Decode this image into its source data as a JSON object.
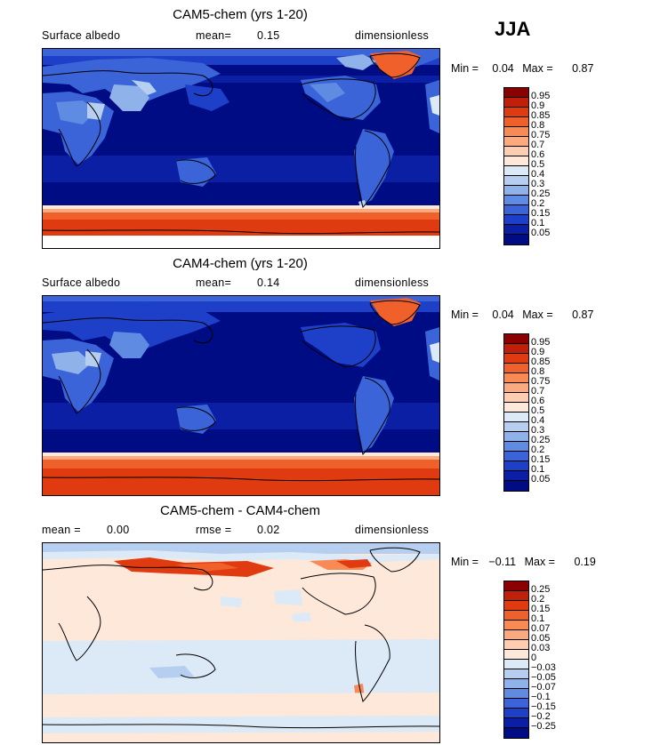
{
  "season": "JJA",
  "panels": [
    {
      "title": "CAM5-chem (yrs 1-20)",
      "left_label": "Surface albedo",
      "mid_label": "mean=",
      "mid_value": "0.15",
      "right_label": "dimensionless",
      "min_label": "Min =",
      "min_value": "0.04",
      "max_label": "Max =",
      "max_value": "0.87",
      "levels": [
        "0.95",
        "0.9",
        "0.85",
        "0.8",
        "0.75",
        "0.7",
        "0.6",
        "0.5",
        "0.4",
        "0.3",
        "0.25",
        "0.2",
        "0.15",
        "0.1",
        "0.05"
      ],
      "colors": [
        "#8b0000",
        "#c0200a",
        "#e03a10",
        "#f0602a",
        "#f88a55",
        "#fbaa80",
        "#fccdb0",
        "#fde8da",
        "#dce9f7",
        "#b6cff0",
        "#8fb2ea",
        "#5f8be2",
        "#3a64d8",
        "#1e3fc8",
        "#0b1fa5",
        "#000c84"
      ]
    },
    {
      "title": "CAM4-chem (yrs 1-20)",
      "left_label": "Surface albedo",
      "mid_label": "mean=",
      "mid_value": "0.14",
      "right_label": "dimensionless",
      "min_label": "Min =",
      "min_value": "0.04",
      "max_label": "Max =",
      "max_value": "0.87",
      "levels": [
        "0.95",
        "0.9",
        "0.85",
        "0.8",
        "0.75",
        "0.7",
        "0.6",
        "0.5",
        "0.4",
        "0.3",
        "0.25",
        "0.2",
        "0.15",
        "0.1",
        "0.05"
      ],
      "colors": [
        "#8b0000",
        "#c0200a",
        "#e03a10",
        "#f0602a",
        "#f88a55",
        "#fbaa80",
        "#fccdb0",
        "#fde8da",
        "#dce9f7",
        "#b6cff0",
        "#8fb2ea",
        "#5f8be2",
        "#3a64d8",
        "#1e3fc8",
        "#0b1fa5",
        "#000c84"
      ]
    },
    {
      "title": "CAM5-chem - CAM4-chem",
      "left_label": "mean =",
      "left_value": "0.00",
      "mid_label": "rmse =",
      "mid_value": "0.02",
      "right_label": "dimensionless",
      "min_label": "Min =",
      "min_value": "−0.11",
      "max_label": "Max =",
      "max_value": "0.19",
      "levels": [
        "0.25",
        "0.2",
        "0.15",
        "0.1",
        "0.07",
        "0.05",
        "0.03",
        "0",
        "−0.03",
        "−0.05",
        "−0.07",
        "−0.1",
        "−0.15",
        "−0.2",
        "−0.25"
      ],
      "colors": [
        "#8b0000",
        "#c0200a",
        "#e03a10",
        "#f0602a",
        "#f88a55",
        "#fbaa80",
        "#fccdb0",
        "#fde8da",
        "#dce9f7",
        "#b6cff0",
        "#8fb2ea",
        "#5f8be2",
        "#3a64d8",
        "#1e3fc8",
        "#0b1fa5",
        "#000c84"
      ]
    }
  ],
  "chart_data": [
    {
      "type": "heatmap",
      "title": "CAM5-chem (yrs 1-20)",
      "variable": "Surface albedo",
      "units": "dimensionless",
      "mean": 0.15,
      "min": 0.04,
      "max": 0.87,
      "season": "JJA",
      "contour_levels": [
        0.05,
        0.1,
        0.15,
        0.2,
        0.25,
        0.3,
        0.4,
        0.5,
        0.6,
        0.7,
        0.75,
        0.8,
        0.85,
        0.9,
        0.95
      ]
    },
    {
      "type": "heatmap",
      "title": "CAM4-chem (yrs 1-20)",
      "variable": "Surface albedo",
      "units": "dimensionless",
      "mean": 0.14,
      "min": 0.04,
      "max": 0.87,
      "season": "JJA",
      "contour_levels": [
        0.05,
        0.1,
        0.15,
        0.2,
        0.25,
        0.3,
        0.4,
        0.5,
        0.6,
        0.7,
        0.75,
        0.8,
        0.85,
        0.9,
        0.95
      ]
    },
    {
      "type": "heatmap",
      "title": "CAM5-chem - CAM4-chem",
      "units": "dimensionless",
      "mean": 0.0,
      "rmse": 0.02,
      "min": -0.11,
      "max": 0.19,
      "season": "JJA",
      "contour_levels": [
        -0.25,
        -0.2,
        -0.15,
        -0.1,
        -0.07,
        -0.05,
        -0.03,
        0,
        0.03,
        0.05,
        0.07,
        0.1,
        0.15,
        0.2,
        0.25
      ]
    }
  ]
}
